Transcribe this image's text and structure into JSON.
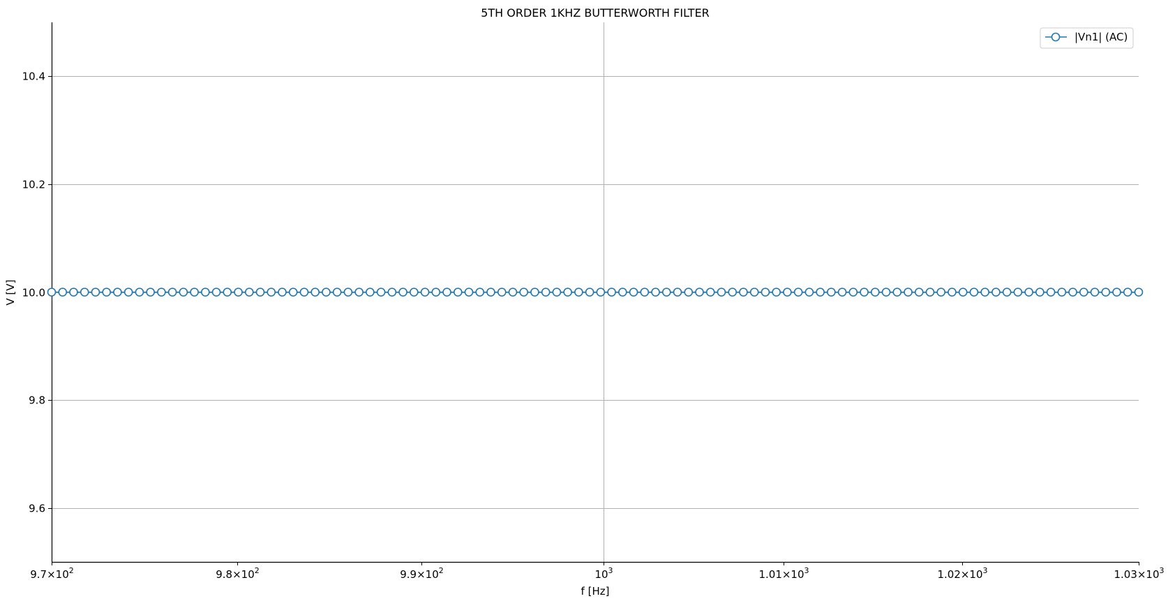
{
  "chart_data": {
    "type": "line",
    "title": "5TH ORDER 1KHZ BUTTERWORTH FILTER",
    "xlabel": "f [Hz]",
    "ylabel": "V [V]",
    "xscale": "log",
    "xlim": [
      970,
      1030
    ],
    "ylim": [
      9.5,
      10.5
    ],
    "grid": true,
    "legend_position": "top-right",
    "x_ticks": [
      {
        "value": 970,
        "mantissa": "9.7",
        "exp": "2"
      },
      {
        "value": 980,
        "mantissa": "9.8",
        "exp": "2"
      },
      {
        "value": 990,
        "mantissa": "9.9",
        "exp": "2"
      },
      {
        "value": 1000,
        "mantissa": "",
        "exp": "3"
      },
      {
        "value": 1010,
        "mantissa": "1.01",
        "exp": "3"
      },
      {
        "value": 1020,
        "mantissa": "1.02",
        "exp": "3"
      },
      {
        "value": 1030,
        "mantissa": "1.03",
        "exp": "3"
      }
    ],
    "y_ticks": [
      "9.6",
      "9.8",
      "10.0",
      "10.2",
      "10.4"
    ],
    "series": [
      {
        "name": "|Vn1| (AC)",
        "color": "#1f77b4",
        "marker": "open-circle",
        "x_start": 970,
        "x_end": 1030,
        "points": 100,
        "value": 10.0
      }
    ]
  }
}
